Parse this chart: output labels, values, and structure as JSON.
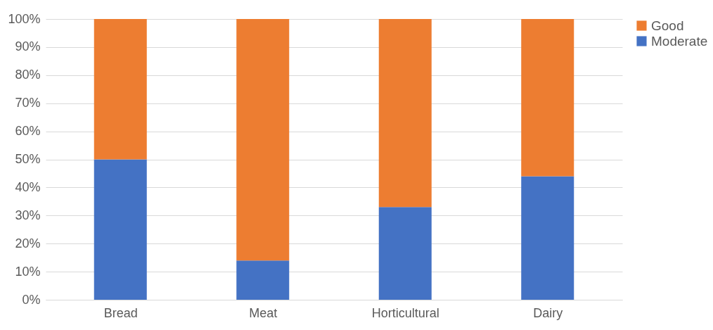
{
  "chart_data": {
    "type": "bar",
    "stacked": true,
    "categories": [
      "Bread",
      "Meat",
      "Horticultural",
      "Dairy"
    ],
    "series": [
      {
        "name": "Moderate",
        "color": "#4472c4",
        "values": [
          50,
          14,
          33,
          44
        ]
      },
      {
        "name": "Good",
        "color": "#ed7d31",
        "values": [
          50,
          86,
          67,
          56
        ]
      }
    ],
    "ylim": [
      0,
      100
    ],
    "yticks": [
      {
        "value": 0,
        "label": "0%"
      },
      {
        "value": 10,
        "label": "10%"
      },
      {
        "value": 20,
        "label": "20%"
      },
      {
        "value": 30,
        "label": "30%"
      },
      {
        "value": 40,
        "label": "40%"
      },
      {
        "value": 50,
        "label": "50%"
      },
      {
        "value": 60,
        "label": "60%"
      },
      {
        "value": 70,
        "label": "70%"
      },
      {
        "value": 80,
        "label": "80%"
      },
      {
        "value": 90,
        "label": "90%"
      },
      {
        "value": 100,
        "label": "100%"
      }
    ],
    "grid": "y",
    "legend": "right"
  }
}
